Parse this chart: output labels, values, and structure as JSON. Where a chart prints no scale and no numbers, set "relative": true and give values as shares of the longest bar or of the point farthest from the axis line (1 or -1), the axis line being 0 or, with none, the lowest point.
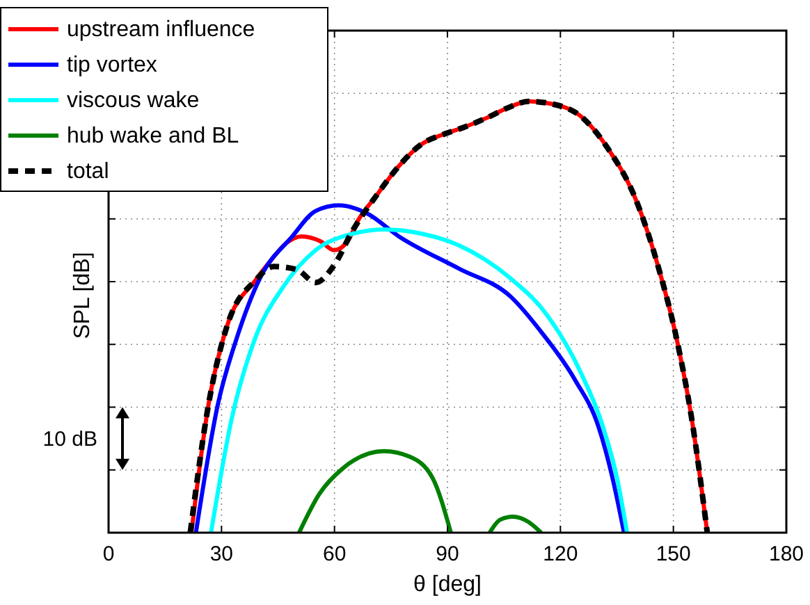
{
  "chart_data": {
    "type": "line",
    "xlabel": "θ [deg]",
    "ylabel": "SPL [dB]",
    "relative": true,
    "xlim": [
      0,
      180
    ],
    "xticks": [
      0,
      30,
      60,
      90,
      120,
      150,
      180
    ],
    "grid": true,
    "legend": "top left",
    "annotations": [
      "10 dB"
    ],
    "series": [
      {
        "name": "upstream influence",
        "color": "#ff0000",
        "line_style": "solid",
        "x": [
          22,
          26.6,
          31.5,
          39,
          43,
          47,
          51.3,
          56.2,
          59.9,
          63.6,
          66,
          71,
          77.1,
          83,
          89.4,
          94.4,
          100.5,
          106,
          111.6,
          117.8,
          125.2,
          132.6,
          140,
          146.1,
          151.1,
          154.8,
          159
        ],
        "values": [
          0,
          0.3,
          0.48,
          0.585,
          0.63,
          0.67,
          0.687,
          0.676,
          0.655,
          0.677,
          0.72,
          0.78,
          0.85,
          0.9,
          0.925,
          0.94,
          0.962,
          0.985,
          1,
          0.994,
          0.967,
          0.891,
          0.773,
          0.613,
          0.44,
          0.268,
          0
        ]
      },
      {
        "name": "tip vortex",
        "color": "#0000ff",
        "line_style": "solid",
        "x": [
          23.2,
          29.1,
          34,
          40.2,
          48.8,
          55,
          61.1,
          68.5,
          77.1,
          93.1,
          106.7,
          115.3,
          123.9,
          130.1,
          133.8,
          136.9
        ],
        "values": [
          0,
          0.3,
          0.45,
          0.59,
          0.687,
          0.746,
          0.759,
          0.741,
          0.687,
          0.612,
          0.548,
          0.461,
          0.354,
          0.246,
          0.128,
          0
        ]
      },
      {
        "name": "viscous wake",
        "color": "#00ffff",
        "line_style": "solid",
        "x": [
          27.2,
          32.8,
          38.9,
          46.3,
          55,
          64.8,
          73.4,
          83.3,
          93.1,
          106.7,
          116.5,
          125.2,
          131.3,
          135,
          137.7
        ],
        "values": [
          0,
          0.268,
          0.45,
          0.569,
          0.655,
          0.693,
          0.703,
          0.693,
          0.666,
          0.59,
          0.504,
          0.375,
          0.246,
          0.128,
          0
        ]
      },
      {
        "name": "hub wake and BL",
        "color": "#008000",
        "line_style": "solid",
        "x": [
          50.6,
          56,
          62.2,
          73.1,
          80,
          86.1,
          90.9,
          96,
          101.2,
          104,
          107.4,
          111.5,
          114.9
        ],
        "values": [
          0,
          0.09,
          0.149,
          0.189,
          0.176,
          0.126,
          0,
          null,
          0,
          0.03,
          0.037,
          0.025,
          0
        ]
      },
      {
        "name": "total",
        "color": "#000000",
        "line_style": "dashed",
        "x": [
          21.7,
          26.6,
          31.5,
          39,
          43.9,
          50,
          55,
          59.9,
          64.8,
          71,
          77.1,
          83,
          89.4,
          94.4,
          100.5,
          106,
          111.6,
          117.8,
          125.2,
          132.6,
          140,
          146.1,
          151.1,
          154.8,
          159
        ],
        "values": [
          0,
          0.3,
          0.48,
          0.585,
          0.617,
          0.61,
          0.58,
          0.62,
          0.7,
          0.78,
          0.85,
          0.9,
          0.925,
          0.94,
          0.962,
          0.985,
          1,
          0.994,
          0.967,
          0.891,
          0.773,
          0.613,
          0.44,
          0.268,
          0
        ]
      }
    ]
  }
}
